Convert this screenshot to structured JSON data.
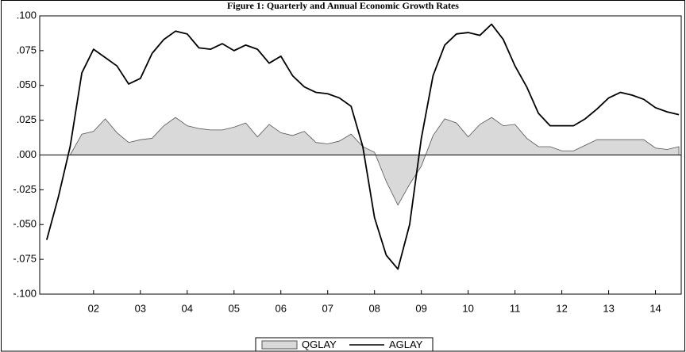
{
  "chart_data": {
    "type": "line",
    "title": "Figure 1: Quarterly and Annual Economic Growth Rates",
    "x": [
      2001.5,
      2001.75,
      2002,
      2002.25,
      2002.5,
      2002.75,
      2003,
      2003.25,
      2003.5,
      2003.75,
      2004,
      2004.25,
      2004.5,
      2004.75,
      2005,
      2005.25,
      2005.5,
      2005.75,
      2006,
      2006.25,
      2006.5,
      2006.75,
      2007,
      2007.25,
      2007.5,
      2007.75,
      2008,
      2008.25,
      2008.5,
      2008.75,
      2009,
      2009.25,
      2009.5,
      2009.75,
      2010,
      2010.25,
      2010.5,
      2010.75,
      2011,
      2011.25,
      2011.5,
      2011.75,
      2012,
      2012.25,
      2012.5,
      2012.75,
      2013,
      2013.25,
      2013.5,
      2013.75,
      2014,
      2014.25,
      2014.5,
      2014.75,
      2015
    ],
    "series": [
      {
        "name": "QGLAY",
        "style": "area",
        "color": "#d9d9d9",
        "values": [
          null,
          null,
          0.0,
          0.015,
          0.017,
          0.026,
          0.016,
          0.009,
          0.011,
          0.012,
          0.021,
          0.027,
          0.021,
          0.019,
          0.018,
          0.018,
          0.02,
          0.023,
          0.013,
          0.022,
          0.016,
          0.014,
          0.017,
          0.009,
          0.008,
          0.01,
          0.015,
          0.006,
          0.002,
          -0.019,
          -0.036,
          -0.021,
          -0.008,
          0.014,
          0.026,
          0.023,
          0.013,
          0.022,
          0.027,
          0.021,
          0.022,
          0.012,
          0.006,
          0.006,
          0.003,
          0.003,
          0.007,
          0.011,
          0.011,
          0.011,
          0.011,
          0.011,
          0.005,
          0.004,
          0.006
        ]
      },
      {
        "name": "AGLAY",
        "style": "line",
        "color": "#000000",
        "values": [
          -0.061,
          -0.03,
          0.006,
          0.059,
          0.076,
          0.07,
          0.064,
          0.051,
          0.055,
          0.073,
          0.083,
          0.089,
          0.087,
          0.077,
          0.076,
          0.08,
          0.075,
          0.079,
          0.076,
          0.066,
          0.071,
          0.057,
          0.049,
          0.045,
          0.044,
          0.041,
          0.035,
          0.006,
          -0.045,
          -0.072,
          -0.082,
          -0.05,
          0.012,
          0.057,
          0.079,
          0.087,
          0.088,
          0.086,
          0.094,
          0.083,
          0.064,
          0.049,
          0.03,
          0.021,
          0.021,
          0.021,
          0.026,
          0.033,
          0.041,
          0.045,
          0.043,
          0.04,
          0.034,
          0.031,
          0.029
        ]
      }
    ],
    "xlim": [
      2001.35,
      2015.05
    ],
    "xticks": [
      {
        "value": 2002.5,
        "label": "02"
      },
      {
        "value": 2003.5,
        "label": "03"
      },
      {
        "value": 2004.5,
        "label": "04"
      },
      {
        "value": 2005.5,
        "label": "05"
      },
      {
        "value": 2006.5,
        "label": "06"
      },
      {
        "value": 2007.5,
        "label": "07"
      },
      {
        "value": 2008.5,
        "label": "08"
      },
      {
        "value": 2009.5,
        "label": "09"
      },
      {
        "value": 2010.5,
        "label": "10"
      },
      {
        "value": 2011.5,
        "label": "11"
      },
      {
        "value": 2012.5,
        "label": "12"
      },
      {
        "value": 2013.5,
        "label": "13"
      },
      {
        "value": 2014.5,
        "label": "14"
      }
    ],
    "ylim": [
      -0.1,
      0.1
    ],
    "yticks": [
      {
        "value": 0.1,
        "label": ".100"
      },
      {
        "value": 0.075,
        "label": ".075"
      },
      {
        "value": 0.05,
        "label": ".050"
      },
      {
        "value": 0.025,
        "label": ".025"
      },
      {
        "value": 0,
        "label": ".000"
      },
      {
        "value": -0.025,
        "label": "-.025"
      },
      {
        "value": -0.05,
        "label": "-.050"
      },
      {
        "value": -0.075,
        "label": "-.075"
      },
      {
        "value": -0.1,
        "label": "-.100"
      }
    ],
    "grid": false
  }
}
